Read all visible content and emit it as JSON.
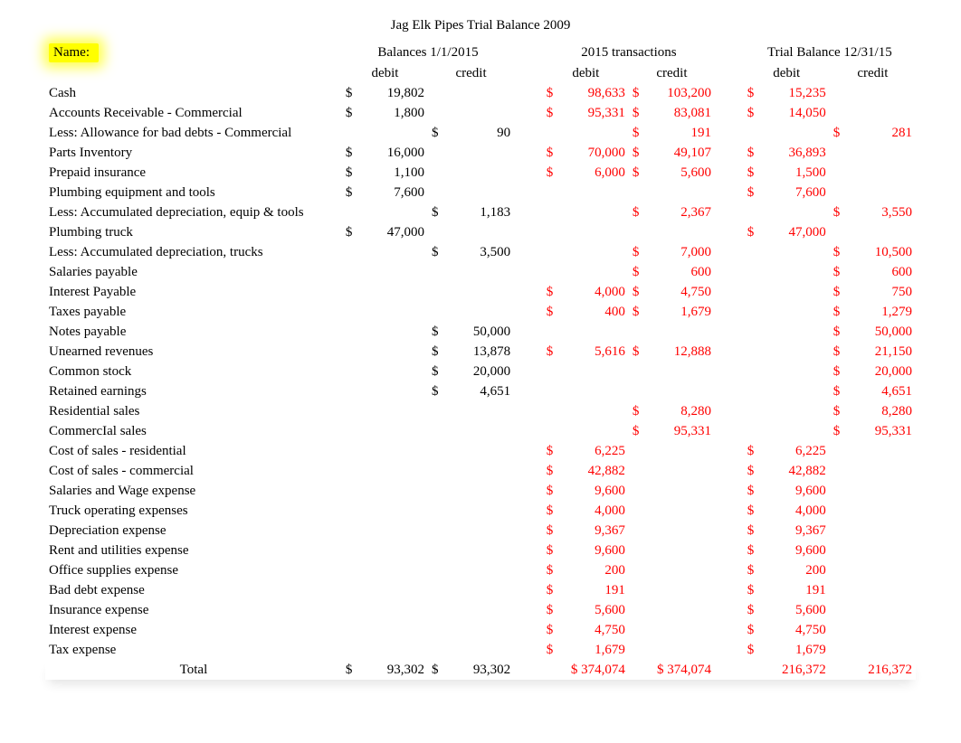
{
  "title": "Jag Elk Pipes Trial Balance 2009",
  "name_label": "Name:",
  "headers": {
    "balances": "Balances 1/1/2015",
    "transactions": "2015 transactions",
    "trial": "Trial Balance 12/31/15",
    "debit": "debit",
    "credit": "credit"
  },
  "rows": [
    {
      "label": "Cash",
      "b_d": "19,802",
      "b_c": "",
      "t_d": "98,633",
      "t_c": "103,200",
      "e_d": "15,235",
      "e_c": ""
    },
    {
      "label": "Accounts Receivable - Commercial",
      "b_d": "1,800",
      "b_c": "",
      "t_d": "95,331",
      "t_c": "83,081",
      "e_d": "14,050",
      "e_c": ""
    },
    {
      "label": "Less: Allowance for bad debts - Commercial",
      "b_d": "",
      "b_c": "90",
      "t_d": "",
      "t_c": "191",
      "e_d": "",
      "e_c": "281"
    },
    {
      "label": "Parts Inventory",
      "b_d": "16,000",
      "b_c": "",
      "t_d": "70,000",
      "t_c": "49,107",
      "e_d": "36,893",
      "e_c": ""
    },
    {
      "label": "Prepaid insurance",
      "b_d": "1,100",
      "b_c": "",
      "t_d": "6,000",
      "t_c": "5,600",
      "e_d": "1,500",
      "e_c": ""
    },
    {
      "label": "Plumbing equipment and tools",
      "b_d": "7,600",
      "b_c": "",
      "t_d": "",
      "t_c": "",
      "e_d": "7,600",
      "e_c": ""
    },
    {
      "label": "Less: Accumulated depreciation, equip & tools",
      "b_d": "",
      "b_c": "1,183",
      "t_d": "",
      "t_c": "2,367",
      "e_d": "",
      "e_c": "3,550"
    },
    {
      "label": "Plumbing truck",
      "b_d": "47,000",
      "b_c": "",
      "t_d": "",
      "t_c": "",
      "e_d": "47,000",
      "e_c": ""
    },
    {
      "label": "Less: Accumulated depreciation, trucks",
      "b_d": "",
      "b_c": "3,500",
      "t_d": "",
      "t_c": "7,000",
      "e_d": "",
      "e_c": "10,500"
    },
    {
      "label": "Salaries payable",
      "b_d": "",
      "b_c": "",
      "t_d": "",
      "t_c": "600",
      "e_d": "",
      "e_c": "600"
    },
    {
      "label": "Interest Payable",
      "b_d": "",
      "b_c": "",
      "t_d": "4,000",
      "t_c": "4,750",
      "e_d": "",
      "e_c": "750"
    },
    {
      "label": "Taxes payable",
      "b_d": "",
      "b_c": "",
      "t_d": "400",
      "t_c": "1,679",
      "e_d": "",
      "e_c": "1,279"
    },
    {
      "label": "Notes payable",
      "b_d": "",
      "b_c": "50,000",
      "t_d": "",
      "t_c": "",
      "e_d": "",
      "e_c": "50,000"
    },
    {
      "label": "Unearned revenues",
      "b_d": "",
      "b_c": "13,878",
      "t_d": "5,616",
      "t_c": "12,888",
      "e_d": "",
      "e_c": "21,150"
    },
    {
      "label": "Common stock",
      "b_d": "",
      "b_c": "20,000",
      "t_d": "",
      "t_c": "",
      "e_d": "",
      "e_c": "20,000"
    },
    {
      "label": "Retained earnings",
      "b_d": "",
      "b_c": "4,651",
      "t_d": "",
      "t_c": "",
      "e_d": "",
      "e_c": "4,651"
    },
    {
      "label": "Residential sales",
      "b_d": "",
      "b_c": "",
      "t_d": "",
      "t_c": "8,280",
      "e_d": "",
      "e_c": "8,280"
    },
    {
      "label": "CommercIal sales",
      "b_d": "",
      "b_c": "",
      "t_d": "",
      "t_c": "95,331",
      "e_d": "",
      "e_c": "95,331"
    },
    {
      "label": "Cost of sales - residential",
      "b_d": "",
      "b_c": "",
      "t_d": "6,225",
      "t_c": "",
      "e_d": "6,225",
      "e_c": ""
    },
    {
      "label": "Cost of sales - commercial",
      "b_d": "",
      "b_c": "",
      "t_d": "42,882",
      "t_c": "",
      "e_d": "42,882",
      "e_c": ""
    },
    {
      "label": "Salaries and Wage expense",
      "b_d": "",
      "b_c": "",
      "t_d": "9,600",
      "t_c": "",
      "e_d": "9,600",
      "e_c": ""
    },
    {
      "label": "Truck operating expenses",
      "b_d": "",
      "b_c": "",
      "t_d": "4,000",
      "t_c": "",
      "e_d": "4,000",
      "e_c": ""
    },
    {
      "label": "Depreciation expense",
      "b_d": "",
      "b_c": "",
      "t_d": "9,367",
      "t_c": "",
      "e_d": "9,367",
      "e_c": ""
    },
    {
      "label": "Rent and utilities expense",
      "b_d": "",
      "b_c": "",
      "t_d": "9,600",
      "t_c": "",
      "e_d": "9,600",
      "e_c": ""
    },
    {
      "label": "Office supplies expense",
      "b_d": "",
      "b_c": "",
      "t_d": "200",
      "t_c": "",
      "e_d": "200",
      "e_c": ""
    },
    {
      "label": "Bad debt expense",
      "b_d": "",
      "b_c": "",
      "t_d": "191",
      "t_c": "",
      "e_d": "191",
      "e_c": ""
    },
    {
      "label": "Insurance expense",
      "b_d": "",
      "b_c": "",
      "t_d": "5,600",
      "t_c": "",
      "e_d": "5,600",
      "e_c": ""
    },
    {
      "label": "Interest expense",
      "b_d": "",
      "b_c": "",
      "t_d": "4,750",
      "t_c": "",
      "e_d": "4,750",
      "e_c": ""
    },
    {
      "label": "Tax expense",
      "b_d": "",
      "b_c": "",
      "t_d": "1,679",
      "t_c": "",
      "e_d": "1,679",
      "e_c": ""
    }
  ],
  "totals": {
    "label": "Total",
    "b_d": "93,302",
    "b_c": "93,302",
    "t_d": "$ 374,074",
    "t_c": "$ 374,074",
    "e_d": "216,372",
    "e_c": "216,372"
  },
  "colors": {
    "text_black": "#000000",
    "text_red": "#ff0000",
    "highlight": "#ffff00",
    "background": "#ffffff"
  }
}
